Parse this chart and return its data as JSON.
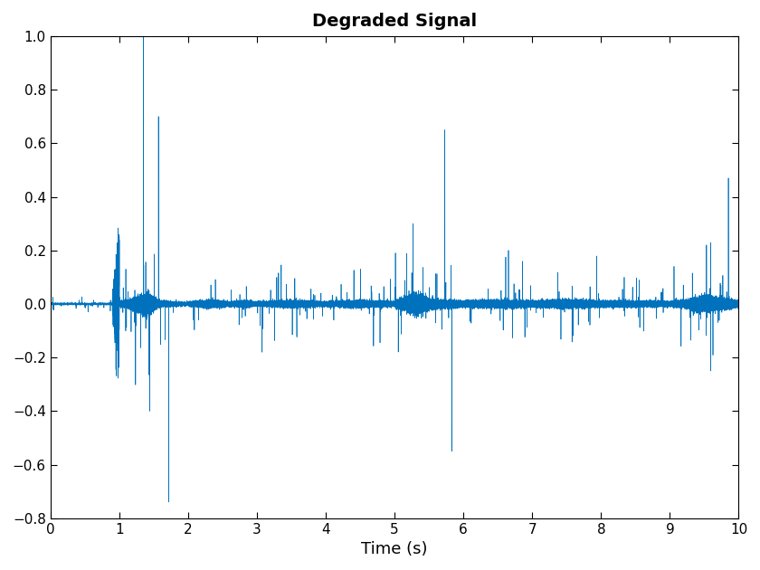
{
  "title": "Degraded Signal",
  "xlabel": "Time (s)",
  "ylabel": "",
  "xlim": [
    0,
    10
  ],
  "ylim": [
    -0.8,
    1.0
  ],
  "yticks": [
    -0.8,
    -0.6,
    -0.4,
    -0.2,
    0,
    0.2,
    0.4,
    0.6,
    0.8,
    1.0
  ],
  "xticks": [
    0,
    1,
    2,
    3,
    4,
    5,
    6,
    7,
    8,
    9,
    10
  ],
  "line_color": "#0072BD",
  "line_width": 0.5,
  "fs": 8000,
  "duration": 10.0,
  "seed": 42,
  "background_color": "#ffffff",
  "title_fontsize": 14,
  "label_fontsize": 13
}
